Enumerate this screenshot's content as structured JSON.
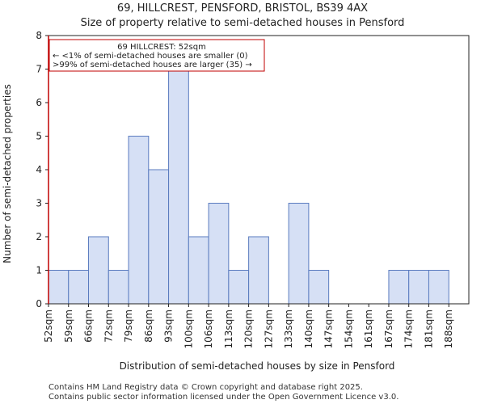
{
  "chart_data": {
    "type": "bar",
    "title": "69, HILLCREST, PENSFORD, BRISTOL, BS39 4AX",
    "subtitle": "Size of property relative to semi-detached houses in Pensford",
    "xlabel": "Distribution of semi-detached houses by size in Pensford",
    "ylabel": "Number of semi-detached properties",
    "categories": [
      "52sqm",
      "59sqm",
      "66sqm",
      "72sqm",
      "79sqm",
      "86sqm",
      "93sqm",
      "100sqm",
      "106sqm",
      "113sqm",
      "120sqm",
      "127sqm",
      "133sqm",
      "140sqm",
      "147sqm",
      "154sqm",
      "161sqm",
      "167sqm",
      "174sqm",
      "181sqm",
      "188sqm"
    ],
    "values": [
      1,
      1,
      2,
      1,
      5,
      4,
      7,
      2,
      3,
      1,
      2,
      0,
      3,
      1,
      0,
      0,
      0,
      1,
      1,
      1,
      0
    ],
    "ylim": [
      0,
      8
    ],
    "yticks": [
      0,
      1,
      2,
      3,
      4,
      5,
      6,
      7,
      8
    ],
    "bar_color": "#d6e0f5",
    "bar_edge_color": "#5a7bbf",
    "annotation": {
      "line1": "69 HILLCREST: 52sqm",
      "line2": "← <1% of semi-detached houses are smaller (0)",
      "line3": ">99% of semi-detached houses are larger (35) →",
      "border_color": "#c00000"
    },
    "property_marker_category": "52sqm",
    "marker_color": "#c00000"
  },
  "footer": {
    "line1": "Contains HM Land Registry data © Crown copyright and database right 2025.",
    "line2": "Contains public sector information licensed under the Open Government Licence v3.0."
  }
}
